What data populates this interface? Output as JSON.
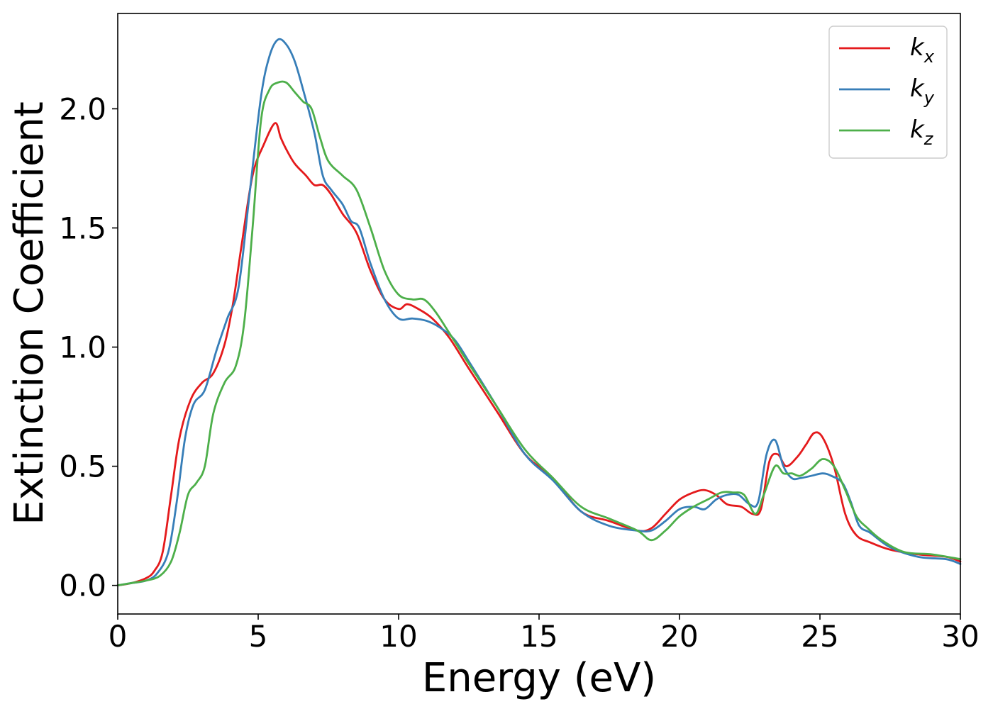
{
  "chart_data": {
    "type": "line",
    "title": "",
    "xlabel": "Energy (eV)",
    "ylabel": "Extinction Coefficient",
    "xlim": [
      0,
      30
    ],
    "ylim": [
      -0.12,
      2.4
    ],
    "xticks": [
      0,
      5,
      10,
      15,
      20,
      25,
      30
    ],
    "xtick_labels": [
      "0",
      "5",
      "10",
      "15",
      "20",
      "25",
      "30"
    ],
    "yticks": [
      0.0,
      0.5,
      1.0,
      1.5,
      2.0
    ],
    "ytick_labels": [
      "0.0",
      "0.5",
      "1.0",
      "1.5",
      "2.0"
    ],
    "grid": false,
    "legend_position": "top-right",
    "series": [
      {
        "name": "k",
        "subscript": "x",
        "color": "#e41a1c",
        "x": [
          0,
          0.5,
          1.0,
          1.3,
          1.6,
          1.9,
          2.2,
          2.6,
          3.0,
          3.4,
          3.8,
          4.1,
          4.4,
          4.8,
          5.2,
          5.6,
          5.8,
          6.0,
          6.3,
          6.7,
          7.0,
          7.3,
          7.6,
          8.0,
          8.5,
          9.0,
          9.5,
          10.0,
          10.3,
          10.7,
          11.2,
          11.8,
          12.5,
          13.5,
          14.5,
          15.5,
          16.5,
          17.5,
          18.5,
          19.0,
          19.5,
          20.0,
          20.5,
          20.9,
          21.3,
          21.7,
          22.2,
          22.6,
          22.9,
          23.2,
          23.5,
          23.8,
          24.2,
          24.5,
          24.8,
          25.1,
          25.5,
          25.9,
          26.3,
          26.8,
          27.5,
          28.5,
          29.5,
          30.0
        ],
        "y": [
          0.0,
          0.01,
          0.03,
          0.06,
          0.14,
          0.38,
          0.62,
          0.78,
          0.85,
          0.89,
          1.01,
          1.18,
          1.42,
          1.72,
          1.85,
          1.94,
          1.88,
          1.83,
          1.77,
          1.72,
          1.68,
          1.68,
          1.64,
          1.56,
          1.48,
          1.32,
          1.2,
          1.16,
          1.18,
          1.16,
          1.12,
          1.04,
          0.91,
          0.73,
          0.55,
          0.45,
          0.31,
          0.27,
          0.23,
          0.24,
          0.3,
          0.36,
          0.39,
          0.4,
          0.38,
          0.34,
          0.33,
          0.3,
          0.32,
          0.52,
          0.55,
          0.5,
          0.54,
          0.59,
          0.64,
          0.62,
          0.5,
          0.3,
          0.21,
          0.18,
          0.15,
          0.13,
          0.12,
          0.1
        ]
      },
      {
        "name": "k",
        "subscript": "y",
        "color": "#377eb8",
        "x": [
          0,
          0.5,
          1.0,
          1.4,
          1.8,
          2.1,
          2.4,
          2.7,
          3.1,
          3.5,
          3.9,
          4.3,
          4.7,
          5.1,
          5.4,
          5.7,
          6.0,
          6.3,
          6.6,
          7.0,
          7.3,
          7.6,
          8.0,
          8.3,
          8.6,
          9.0,
          9.5,
          10.0,
          10.5,
          11.0,
          11.5,
          12.0,
          12.5,
          13.5,
          14.5,
          15.5,
          16.5,
          17.5,
          18.5,
          19.0,
          19.5,
          20.0,
          20.5,
          20.9,
          21.3,
          21.7,
          22.1,
          22.5,
          22.8,
          23.1,
          23.4,
          23.7,
          24.0,
          24.3,
          24.7,
          25.1,
          25.4,
          25.8,
          26.1,
          26.4,
          26.8,
          27.5,
          28.5,
          29.5,
          30.0
        ],
        "y": [
          0.0,
          0.01,
          0.02,
          0.05,
          0.14,
          0.35,
          0.62,
          0.76,
          0.82,
          0.98,
          1.12,
          1.25,
          1.65,
          2.05,
          2.22,
          2.29,
          2.27,
          2.2,
          2.08,
          1.9,
          1.72,
          1.66,
          1.6,
          1.53,
          1.5,
          1.35,
          1.2,
          1.12,
          1.12,
          1.11,
          1.08,
          1.03,
          0.94,
          0.75,
          0.55,
          0.44,
          0.31,
          0.25,
          0.23,
          0.23,
          0.27,
          0.32,
          0.33,
          0.32,
          0.36,
          0.38,
          0.38,
          0.34,
          0.35,
          0.55,
          0.61,
          0.5,
          0.45,
          0.45,
          0.46,
          0.47,
          0.46,
          0.43,
          0.35,
          0.25,
          0.22,
          0.16,
          0.12,
          0.11,
          0.09
        ]
      },
      {
        "name": "k",
        "subscript": "z",
        "color": "#4daf4a",
        "x": [
          0,
          0.5,
          1.0,
          1.5,
          1.9,
          2.2,
          2.5,
          2.8,
          3.1,
          3.4,
          3.8,
          4.2,
          4.5,
          4.8,
          5.1,
          5.4,
          5.7,
          6.0,
          6.3,
          6.6,
          6.9,
          7.2,
          7.5,
          8.0,
          8.5,
          9.0,
          9.5,
          10.0,
          10.5,
          10.9,
          11.3,
          11.8,
          12.5,
          13.5,
          14.5,
          15.5,
          16.5,
          17.5,
          18.5,
          19.0,
          19.5,
          20.0,
          20.5,
          21.0,
          21.5,
          21.9,
          22.3,
          22.7,
          23.0,
          23.4,
          23.7,
          24.0,
          24.3,
          24.7,
          25.1,
          25.5,
          25.9,
          26.3,
          26.7,
          27.2,
          28.0,
          29.0,
          30.0
        ],
        "y": [
          0.0,
          0.01,
          0.02,
          0.04,
          0.1,
          0.22,
          0.38,
          0.43,
          0.5,
          0.72,
          0.85,
          0.92,
          1.1,
          1.5,
          1.95,
          2.08,
          2.11,
          2.11,
          2.07,
          2.03,
          2.0,
          1.88,
          1.78,
          1.72,
          1.66,
          1.5,
          1.32,
          1.22,
          1.2,
          1.2,
          1.15,
          1.06,
          0.93,
          0.75,
          0.57,
          0.45,
          0.33,
          0.28,
          0.23,
          0.19,
          0.23,
          0.29,
          0.33,
          0.36,
          0.39,
          0.39,
          0.38,
          0.3,
          0.38,
          0.5,
          0.47,
          0.47,
          0.46,
          0.49,
          0.53,
          0.5,
          0.4,
          0.29,
          0.24,
          0.19,
          0.14,
          0.13,
          0.11
        ]
      }
    ]
  }
}
